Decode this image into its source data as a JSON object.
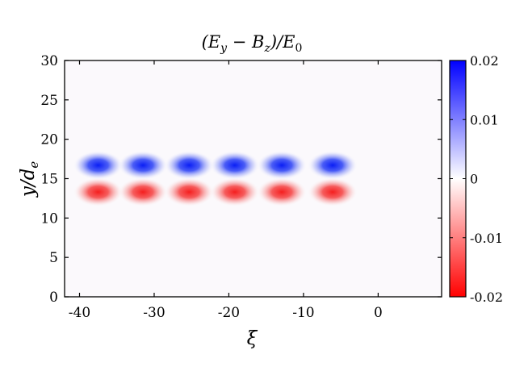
{
  "chart_data": {
    "type": "heatmap",
    "title": "(E_y − B_z)/E_0",
    "xlabel": "ξ",
    "ylabel": "y/d_e",
    "xlim": [
      -42,
      8.5
    ],
    "ylim": [
      0,
      30
    ],
    "xticks": [
      -40,
      -30,
      -20,
      -10,
      0
    ],
    "xtick_labels": [
      "-40",
      "-30",
      "-20",
      "-10",
      "0"
    ],
    "yticks": [
      0,
      5,
      10,
      15,
      20,
      25,
      30
    ],
    "ytick_labels": [
      "0",
      "5",
      "10",
      "15",
      "20",
      "25",
      "30"
    ],
    "colorbar": {
      "range": [
        -0.02,
        0.02
      ],
      "ticks": [
        -0.02,
        -0.01,
        0,
        0.01,
        0.02
      ],
      "tick_labels": [
        "-0.02",
        "-0.01",
        "0",
        "0.01",
        "0.02"
      ],
      "colormap": "red-white-blue",
      "low_color": "#ff0000",
      "mid_color": "#ffffff",
      "high_color": "#0000ff"
    },
    "blobs": [
      {
        "x": -37.5,
        "y": 16.7,
        "value": 0.02
      },
      {
        "x": -31.5,
        "y": 16.7,
        "value": 0.02
      },
      {
        "x": -25.3,
        "y": 16.7,
        "value": 0.02
      },
      {
        "x": -19.2,
        "y": 16.7,
        "value": 0.02
      },
      {
        "x": -12.9,
        "y": 16.7,
        "value": 0.02
      },
      {
        "x": -6.1,
        "y": 16.7,
        "value": 0.02
      },
      {
        "x": -37.5,
        "y": 13.3,
        "value": -0.02
      },
      {
        "x": -31.5,
        "y": 13.3,
        "value": -0.02
      },
      {
        "x": -25.3,
        "y": 13.3,
        "value": -0.02
      },
      {
        "x": -19.2,
        "y": 13.3,
        "value": -0.02
      },
      {
        "x": -12.9,
        "y": 13.3,
        "value": -0.02
      },
      {
        "x": -6.1,
        "y": 13.3,
        "value": -0.02
      }
    ],
    "background_value": 0.0005,
    "grid": false
  }
}
